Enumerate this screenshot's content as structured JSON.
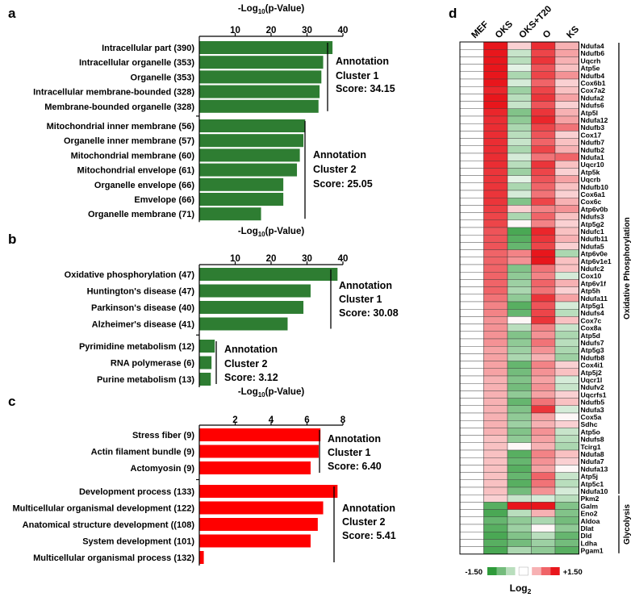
{
  "chart_data": [
    {
      "panel": "a",
      "type": "bar",
      "orientation": "horizontal",
      "color": "#2e7d32",
      "xlabel": "-Log10(p-Value)",
      "xlabel_main": "-Log",
      "xlabel_sub": "10",
      "xlabel_rest": "(p-Value)",
      "xlim": [
        0,
        40
      ],
      "ticks": [
        10,
        20,
        30,
        40
      ],
      "groups": [
        {
          "categories": [
            "Intracellular part (390)",
            "Intracellular organelle (353)",
            "Organelle (353)",
            "Intracellular membrane-bounded (328)",
            "Membrane-bounded organelle (328)"
          ],
          "values": [
            37.1,
            34.5,
            34.0,
            33.5,
            33.2
          ],
          "annotation": [
            "Annotation",
            "Cluster 1",
            "Score: 34.15"
          ]
        },
        {
          "categories": [
            "Mitochondrial inner membrane (56)",
            "Organelle inner membrane (57)",
            "Mitochondrial membrane (60)",
            "Mitochondrial envelope (61)",
            "Organelle envelope (66)",
            "Emvelope (66)",
            "Organelle membrane (71)"
          ],
          "values": [
            29.5,
            29.0,
            28.0,
            27.2,
            23.4,
            23.4,
            17.2
          ],
          "annotation": [
            "Annotation",
            "Cluster 2",
            "Score: 25.05"
          ]
        }
      ]
    },
    {
      "panel": "b",
      "type": "bar",
      "orientation": "horizontal",
      "color": "#2e7d32",
      "xlabel": "-Log10(p-Value)",
      "xlabel_main": "-Log",
      "xlabel_sub": "10",
      "xlabel_rest": "(p-Value)",
      "xlim": [
        0,
        40
      ],
      "ticks": [
        10,
        20,
        30,
        40
      ],
      "groups": [
        {
          "categories": [
            "Oxidative phosphorylation (47)",
            "Huntington's disease (47)",
            "Parkinson's disease (40)",
            "Alzheimer's disease (41)"
          ],
          "values": [
            38.5,
            31.0,
            29.0,
            24.6
          ],
          "annotation": [
            "Annotation",
            "Cluster 1",
            "Score: 30.08"
          ]
        },
        {
          "categories": [
            "Pyrimidine metabolism (12)",
            "RNA polymerase (6)",
            "Purine metabolism (13)"
          ],
          "values": [
            4.3,
            3.4,
            3.2
          ],
          "annotation": [
            "Annotation",
            "Cluster 2",
            "Score: 3.12"
          ]
        }
      ]
    },
    {
      "panel": "c",
      "type": "bar",
      "orientation": "horizontal",
      "color": "#ff0000",
      "xlabel": "-Log10(p-Value)",
      "xlabel_main": "-Log",
      "xlabel_sub": "10",
      "xlabel_rest": "(p-Value)",
      "xlim": [
        0,
        8
      ],
      "ticks": [
        2,
        4,
        6,
        8
      ],
      "groups": [
        {
          "categories": [
            "Stress fiber (9)",
            "Actin filament bundle (9)",
            "Actomyosin (9)"
          ],
          "values": [
            6.75,
            6.65,
            6.2
          ],
          "annotation": [
            "Annotation",
            "Cluster 1",
            "Score: 6.40"
          ]
        },
        {
          "categories": [
            "Development process (133)",
            "Multicellular organismal development (122)",
            "Anatomical structure development ((108)",
            "System development (101)",
            "Multicellular organismal process (132)"
          ],
          "values": [
            7.7,
            6.9,
            6.6,
            6.2,
            0.25
          ],
          "annotation": [
            "Annotation",
            "Cluster 2",
            "Score: 5.41"
          ]
        }
      ]
    },
    {
      "panel": "d",
      "type": "heatmap",
      "columns": [
        "MEF",
        "OKS",
        "OKS+T20",
        "O",
        "KS"
      ],
      "rows": [
        "Ndufa4",
        "Ndufb6",
        "Uqcrh",
        "Atp5e",
        "Ndufb4",
        "Cox6b1",
        "Cox7a2",
        "Ndufa2",
        "Ndufs6",
        "Atp5l",
        "Ndufa12",
        "Ndufb3",
        "Cox17",
        "Ndufb7",
        "Ndufb2",
        "Ndufa1",
        "Uqcr10",
        "Atp5k",
        "Uqcrb",
        "Ndufb10",
        "Cox6a1",
        "Cox6c",
        "Atp6v0b",
        "Ndufs3",
        "Atp5g2",
        "Ndufc1",
        "Ndufb11",
        "Ndufa5",
        "Atp6v0e",
        "Atp6v1e1",
        "Ndufc2",
        "Cox10",
        "Atp6v1f",
        "Atp5h",
        "Ndufa11",
        "Atp5g1",
        "Ndufs4",
        "Cox7c",
        "Cox8a",
        "Atp5d",
        "Ndufs7",
        "Atp5g3",
        "Ndufb8",
        "Cox4i1",
        "Atp5j2",
        "Uqcr1l",
        "Ndufv2",
        "Uqcrfs1",
        "Ndufb5",
        "Ndufa3",
        "Cox5a",
        "Sdhc",
        "Atp5o",
        "Ndufs8",
        "Tcirg1",
        "Ndufa8",
        "Ndufa7",
        "Ndufa13",
        "Atp5j",
        "Atp5c1",
        "Ndufa10",
        "Pkm2",
        "Galm",
        "Eno2",
        "Aldoa",
        "Dlat",
        "Dld",
        "Ldha",
        "Pgam1"
      ],
      "values": [
        [
          0,
          1.5,
          0.3,
          1.35,
          0.5
        ],
        [
          0,
          1.5,
          -0.4,
          1.2,
          0.6
        ],
        [
          0,
          1.5,
          -0.5,
          1.3,
          0.5
        ],
        [
          0,
          1.5,
          -0.2,
          1.1,
          0.4
        ],
        [
          0,
          1.5,
          -0.6,
          1.2,
          0.7
        ],
        [
          0,
          1.5,
          -0.3,
          1.0,
          0.3
        ],
        [
          0,
          1.4,
          -0.7,
          1.2,
          0.4
        ],
        [
          0,
          1.5,
          -0.5,
          1.3,
          0.6
        ],
        [
          0,
          1.5,
          -0.4,
          1.1,
          0.3
        ],
        [
          0,
          1.4,
          -0.9,
          1.3,
          0.5
        ],
        [
          0,
          1.35,
          -0.8,
          1.4,
          0.6
        ],
        [
          0,
          1.35,
          -0.6,
          1.2,
          0.9
        ],
        [
          0,
          1.35,
          -0.5,
          1.1,
          0.3
        ],
        [
          0,
          1.35,
          -0.4,
          1.0,
          0.4
        ],
        [
          0,
          1.35,
          -0.6,
          1.2,
          0.5
        ],
        [
          0,
          1.35,
          -0.3,
          0.9,
          1.0
        ],
        [
          0,
          1.35,
          -0.5,
          1.3,
          0.4
        ],
        [
          0,
          1.3,
          -0.7,
          1.2,
          0.3
        ],
        [
          0,
          1.3,
          -0.2,
          1.1,
          0.6
        ],
        [
          0,
          1.3,
          -0.6,
          1.0,
          0.4
        ],
        [
          0,
          1.3,
          -0.3,
          0.9,
          0.3
        ],
        [
          0,
          1.3,
          -0.9,
          1.2,
          0.5
        ],
        [
          0,
          1.25,
          0.3,
          0.8,
          0.7
        ],
        [
          0,
          1.2,
          -0.6,
          1.0,
          0.4
        ],
        [
          0,
          1.2,
          0.05,
          0.8,
          0.3
        ],
        [
          0,
          1.1,
          -1.3,
          1.4,
          0.4
        ],
        [
          0,
          1.1,
          -1.2,
          1.3,
          0.5
        ],
        [
          0,
          1.1,
          -1.1,
          1.2,
          0.3
        ],
        [
          0,
          1.0,
          0.8,
          1.5,
          -0.6
        ],
        [
          0,
          1.0,
          0.7,
          1.5,
          0.4
        ],
        [
          0,
          1.0,
          -0.9,
          0.9,
          0.4
        ],
        [
          0,
          1.0,
          -0.8,
          0.8,
          -0.3
        ],
        [
          0,
          1.0,
          -0.7,
          1.0,
          0.5
        ],
        [
          0,
          1.0,
          -0.6,
          0.9,
          0.3
        ],
        [
          0,
          0.9,
          -0.8,
          1.3,
          0.6
        ],
        [
          0,
          0.8,
          -1.2,
          1.1,
          -0.3
        ],
        [
          0,
          0.8,
          -1.1,
          1.2,
          -0.5
        ],
        [
          0,
          0.7,
          0.05,
          1.3,
          0.4
        ],
        [
          0,
          0.7,
          -0.5,
          0.8,
          -0.4
        ],
        [
          0,
          0.7,
          -0.9,
          0.7,
          -0.6
        ],
        [
          0,
          0.7,
          -0.8,
          0.9,
          -0.5
        ],
        [
          0,
          0.6,
          -0.7,
          0.7,
          -0.6
        ],
        [
          0,
          0.6,
          -0.6,
          0.5,
          -0.7
        ],
        [
          0,
          0.6,
          -1.1,
          0.8,
          0.3
        ],
        [
          0,
          0.6,
          -1.0,
          0.7,
          0.4
        ],
        [
          0,
          0.5,
          -0.9,
          0.6,
          -0.3
        ],
        [
          0,
          0.5,
          -1.0,
          0.7,
          -0.4
        ],
        [
          0,
          0.5,
          -0.8,
          0.6,
          0.3
        ],
        [
          0,
          0.5,
          -1.1,
          0.9,
          0.4
        ],
        [
          0,
          0.5,
          -0.9,
          1.3,
          -0.3
        ],
        [
          0,
          0.5,
          -0.8,
          0.6,
          0.05
        ],
        [
          0,
          0.5,
          -0.7,
          0.5,
          0.3
        ],
        [
          0,
          0.5,
          -0.9,
          0.7,
          -0.4
        ],
        [
          0,
          0.4,
          -0.8,
          0.6,
          -0.5
        ],
        [
          0,
          0.4,
          0.05,
          0.5,
          -0.6
        ],
        [
          0,
          0.4,
          -1.2,
          0.8,
          0.4
        ],
        [
          0,
          0.4,
          -1.1,
          0.7,
          0.3
        ],
        [
          0,
          0.4,
          -1.2,
          0.6,
          0.05
        ],
        [
          0,
          0.4,
          -1.1,
          1.0,
          -0.4
        ],
        [
          0,
          0.4,
          -1.2,
          0.9,
          -0.5
        ],
        [
          0,
          0.4,
          -1.0,
          0.7,
          -0.3
        ],
        [
          0,
          0.3,
          -0.4,
          -0.3,
          -0.5
        ],
        [
          0,
          -1.2,
          1.5,
          1.5,
          -0.9
        ],
        [
          0,
          -1.3,
          -0.5,
          0.5,
          -0.9
        ],
        [
          0,
          -1.1,
          -0.8,
          -0.6,
          -1.0
        ],
        [
          0,
          -1.2,
          -0.7,
          0.05,
          -0.8
        ],
        [
          0,
          -1.3,
          -0.9,
          -0.5,
          -1.1
        ],
        [
          0,
          -1.2,
          -1.0,
          -0.7,
          -1.0
        ],
        [
          0,
          -1.3,
          -0.6,
          -0.8,
          -1.2
        ]
      ],
      "groups": [
        {
          "label": "Oxidative Phosphorylation",
          "start": 0,
          "end": 60
        },
        {
          "label": "Glycolysis",
          "start": 61,
          "end": 68
        }
      ],
      "legend": {
        "min_label": "-1.50",
        "max_label": "+1.50",
        "title": "Log2",
        "title_main": "Log",
        "title_sub": "2"
      },
      "colors": {
        "neg": "#2e9b3a",
        "pos": "#e8161c",
        "zero": "#ffffff"
      }
    }
  ],
  "panel_labels": [
    "a",
    "b",
    "c",
    "d"
  ],
  "colors": {
    "green_bar": "#2e7d32",
    "red_bar": "#ff0000"
  }
}
